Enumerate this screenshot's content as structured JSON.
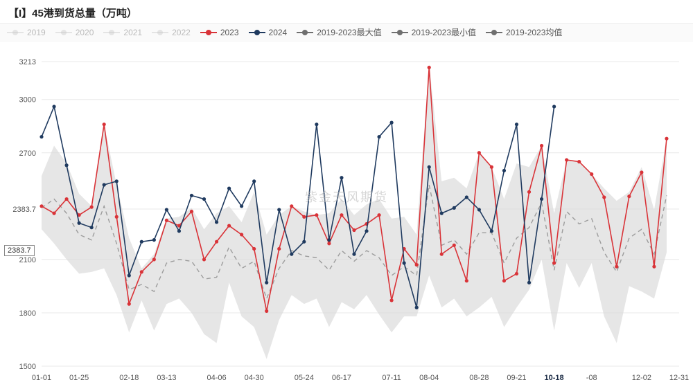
{
  "title": "【I】45港到货总量（万吨）",
  "watermark": "紫金天风期货",
  "legend": [
    {
      "label": "2019",
      "color": "#c9c9c9",
      "dimmed": true
    },
    {
      "label": "2020",
      "color": "#c9c9c9",
      "dimmed": true
    },
    {
      "label": "2021",
      "color": "#c9c9c9",
      "dimmed": true
    },
    {
      "label": "2022",
      "color": "#c9c9c9",
      "dimmed": true
    },
    {
      "label": "2023",
      "color": "#d93338",
      "dimmed": false
    },
    {
      "label": "2024",
      "color": "#1f3a5f",
      "dimmed": false
    },
    {
      "label": "2019-2023最大值",
      "color": "#6f6f6f",
      "dimmed": false
    },
    {
      "label": "2019-2023最小值",
      "color": "#6f6f6f",
      "dimmed": false
    },
    {
      "label": "2019-2023均值",
      "color": "#6f6f6f",
      "dimmed": false
    }
  ],
  "chart": {
    "ylim": [
      1500,
      3213
    ],
    "yticks": [
      1500,
      1800,
      2100,
      2383.7,
      2700,
      3000,
      3213
    ],
    "ytick_labels": [
      "1500",
      "1800",
      "2100",
      "2383.7",
      "2700",
      "3000",
      "3213"
    ],
    "reference_y": 2383.7,
    "reference_label": "2383.7",
    "xticks_idx": [
      0,
      3,
      7,
      10,
      14,
      17,
      21,
      24,
      28,
      31,
      35,
      38,
      41,
      44,
      48,
      51
    ],
    "xtick_labels": [
      "01-01",
      "01-25",
      "02-18",
      "03-13",
      "04-06",
      "04-30",
      "05-24",
      "06-17",
      "07-11",
      "08-04",
      "08-28",
      "09-21",
      "10-18",
      "-08",
      "12-02",
      "12-31"
    ],
    "xtick_emph_idx": 41,
    "n_points": 52,
    "background_color": "#ffffff",
    "grid_color": "#e8e8e8",
    "range_fill": "#d8d8d8",
    "range_opacity": 0.65,
    "avg_color": "#9c9c9c",
    "avg_dash": "6,5",
    "line_width": 1.6,
    "marker_r": 2.6,
    "series_2023": {
      "color": "#d93338",
      "values": [
        2400,
        2360,
        2440,
        2350,
        2395,
        2860,
        2340,
        1850,
        2030,
        2100,
        2320,
        2290,
        2370,
        2100,
        2200,
        2290,
        2240,
        2160,
        1810,
        2160,
        2400,
        2340,
        2350,
        2190,
        2350,
        2265,
        2300,
        2350,
        1870,
        2160,
        2070,
        3180,
        2130,
        2180,
        1980,
        2700,
        2620,
        1980,
        2020,
        2480,
        2740,
        2080,
        2660,
        2650,
        2580,
        2450,
        2060,
        2455,
        2590,
        2060,
        2780
      ]
    },
    "series_2024": {
      "color": "#1f3a5f",
      "values": [
        2790,
        2960,
        2630,
        2305,
        2280,
        2520,
        2540,
        2010,
        2200,
        2210,
        2380,
        2260,
        2460,
        2440,
        2310,
        2500,
        2400,
        2540,
        1970,
        2380,
        2130,
        2200,
        2860,
        2210,
        2560,
        2130,
        2260,
        2790,
        2870,
        2080,
        1830,
        2620,
        2360,
        2390,
        2450,
        2380,
        2260,
        2600,
        2860,
        1970,
        2440,
        2960
      ]
    },
    "series_max": {
      "values": [
        2570,
        2740,
        2640,
        2470,
        2400,
        2860,
        2520,
        2220,
        2050,
        2130,
        2330,
        2340,
        2390,
        2270,
        2360,
        2400,
        2310,
        2480,
        2240,
        2350,
        2400,
        2370,
        2350,
        2360,
        2440,
        2350,
        2410,
        2440,
        2330,
        2340,
        2240,
        3200,
        2540,
        2560,
        2500,
        2700,
        2620,
        2440,
        2640,
        2620,
        2740,
        2360,
        2660,
        2650,
        2580,
        2500,
        2430,
        2480,
        2620,
        2380,
        2780
      ]
    },
    "series_min": {
      "values": [
        2270,
        2190,
        2100,
        2020,
        2030,
        2050,
        1900,
        1690,
        1870,
        1700,
        1850,
        1880,
        1800,
        1680,
        1630,
        1970,
        1780,
        1720,
        1540,
        1760,
        1900,
        1850,
        1880,
        1720,
        1860,
        1820,
        1900,
        1790,
        1690,
        1780,
        1780,
        2010,
        1830,
        1880,
        1780,
        1830,
        1890,
        1720,
        1830,
        1930,
        2100,
        1700,
        2080,
        1940,
        2080,
        1780,
        1630,
        1950,
        1920,
        1880,
        2140
      ]
    },
    "series_avg": {
      "values": [
        2390,
        2440,
        2360,
        2240,
        2210,
        2400,
        2190,
        1930,
        1960,
        1920,
        2080,
        2100,
        2090,
        1990,
        2000,
        2170,
        2050,
        2090,
        1880,
        2050,
        2150,
        2120,
        2110,
        2040,
        2150,
        2090,
        2150,
        2110,
        2010,
        2060,
        2010,
        2520,
        2180,
        2210,
        2130,
        2250,
        2250,
        2080,
        2220,
        2280,
        2420,
        2040,
        2370,
        2300,
        2330,
        2140,
        2030,
        2220,
        2270,
        2130,
        2460
      ]
    }
  }
}
